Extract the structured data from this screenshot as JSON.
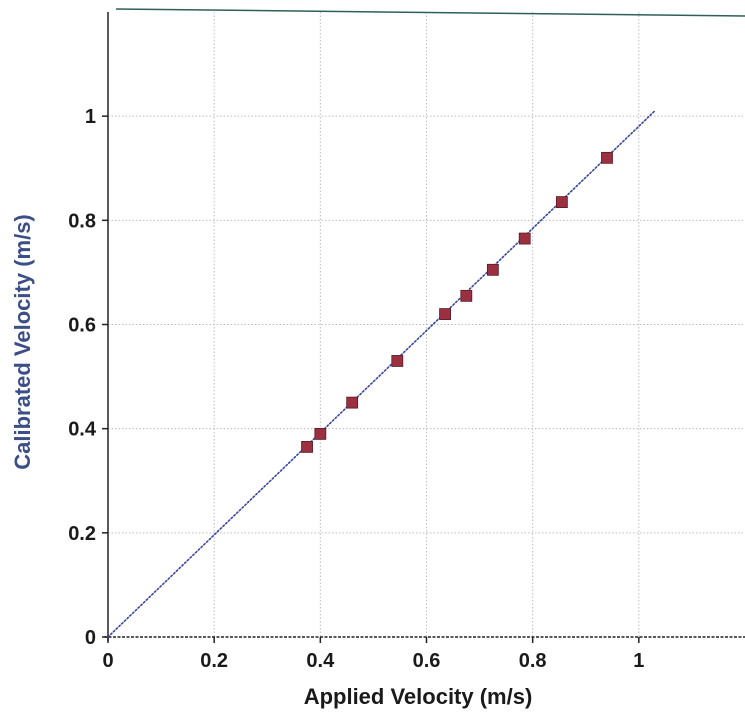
{
  "chart_data": {
    "type": "scatter",
    "title": "",
    "xlabel": "Applied Velocity (m/s)",
    "ylabel": "Calibrated Velocity (m/s)",
    "xlim": [
      0,
      1.2
    ],
    "ylim": [
      0,
      1.2
    ],
    "x_ticks": [
      0,
      0.2,
      0.4,
      0.6,
      0.8,
      1
    ],
    "x_tick_labels": [
      "0",
      "0.2",
      "0.4",
      "0.6",
      "0.8",
      "1"
    ],
    "y_ticks": [
      0,
      0.2,
      0.4,
      0.6,
      0.8,
      1
    ],
    "y_tick_labels": [
      "0",
      "0.2",
      "0.4",
      "0.6",
      "0.8",
      "1"
    ],
    "grid": true,
    "series": [
      {
        "type": "scatter",
        "marker": "square",
        "x": [
          0.375,
          0.4,
          0.46,
          0.545,
          0.635,
          0.675,
          0.725,
          0.785,
          0.855,
          0.94
        ],
        "y": [
          0.365,
          0.39,
          0.45,
          0.53,
          0.62,
          0.655,
          0.705,
          0.765,
          0.835,
          0.92
        ]
      },
      {
        "type": "line",
        "style": "dotted",
        "x": [
          0,
          1.03
        ],
        "y": [
          0,
          1.01
        ]
      }
    ]
  },
  "colors": {
    "marker": "#9b3040",
    "marker_edge": "#5a1a24",
    "fit_line": "#3a47a0",
    "grid": "#bdbdbd",
    "axis": "#222222",
    "top_border": "#2e5f5a",
    "ylabel": "#3c4e86",
    "xlabel": "#1a1a1a"
  }
}
